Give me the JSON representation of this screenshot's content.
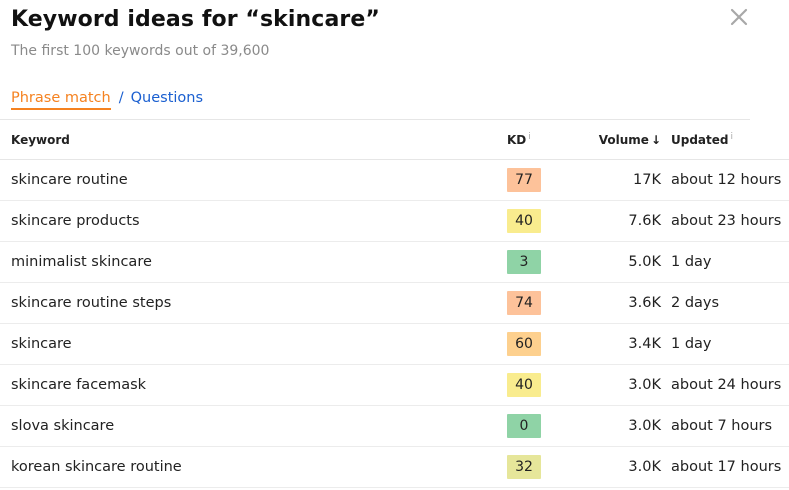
{
  "header": {
    "title": "Keyword ideas for “skincare”",
    "subtitle": "The first 100 keywords out of 39,600",
    "close_icon": "close-icon"
  },
  "tabs": {
    "active": "Phrase match",
    "separator": "/",
    "other": "Questions"
  },
  "table": {
    "columns": {
      "keyword": "Keyword",
      "kd": "KD",
      "kd_info": "i",
      "volume": "Volume",
      "volume_sort_icon": "↓",
      "updated": "Updated",
      "updated_info": "i"
    },
    "rows": [
      {
        "keyword": "skincare routine",
        "kd": "77",
        "kd_color": "#fdc29a",
        "volume": "17K",
        "updated": "about 12 hours"
      },
      {
        "keyword": "skincare products",
        "kd": "40",
        "kd_color": "#f9ec8e",
        "volume": "7.6K",
        "updated": "about 23 hours"
      },
      {
        "keyword": "minimalist skincare",
        "kd": "3",
        "kd_color": "#8fd3a6",
        "volume": "5.0K",
        "updated": "1 day"
      },
      {
        "keyword": "skincare routine steps",
        "kd": "74",
        "kd_color": "#fdc29a",
        "volume": "3.6K",
        "updated": "2 days"
      },
      {
        "keyword": "skincare",
        "kd": "60",
        "kd_color": "#fdd08e",
        "volume": "3.4K",
        "updated": "1 day"
      },
      {
        "keyword": "skincare facemask",
        "kd": "40",
        "kd_color": "#f9ec8e",
        "volume": "3.0K",
        "updated": "about 24 hours"
      },
      {
        "keyword": "slova skincare",
        "kd": "0",
        "kd_color": "#8fd3a6",
        "volume": "3.0K",
        "updated": "about 7 hours"
      },
      {
        "keyword": "korean skincare routine",
        "kd": "32",
        "kd_color": "#e6e69a",
        "volume": "3.0K",
        "updated": "about 17 hours"
      }
    ]
  },
  "colors": {
    "accent": "#f58220",
    "link": "#1a5fd0"
  }
}
